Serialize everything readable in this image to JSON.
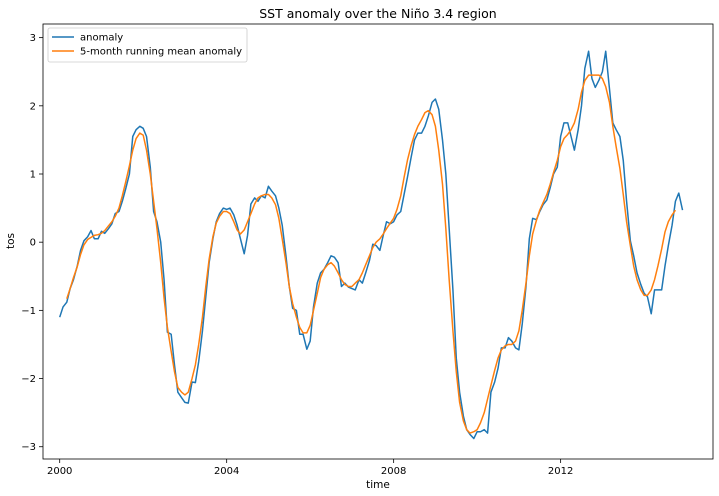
{
  "chart_data": {
    "type": "line",
    "title": "SST anomaly over the Niño 3.4 region",
    "xlabel": "time",
    "ylabel": "tos",
    "xlim": [
      1999.6,
      2015.65
    ],
    "ylim": [
      -3.18,
      3.2
    ],
    "x_ticks": [
      2000,
      2004,
      2008,
      2012
    ],
    "x_tick_labels": [
      "2000",
      "2004",
      "2008",
      "2012"
    ],
    "y_ticks": [
      -3,
      -2,
      -1,
      0,
      1,
      2,
      3
    ],
    "y_tick_labels": [
      "−3",
      "−2",
      "−1",
      "0",
      "1",
      "2",
      "3"
    ],
    "grid": false,
    "legend": "top-left",
    "series": [
      {
        "name": "anomaly",
        "color": "#1f77b4",
        "x": [
          2000.0,
          2000.08,
          2000.17,
          2000.25,
          2000.33,
          2000.42,
          2000.5,
          2000.58,
          2000.67,
          2000.75,
          2000.83,
          2000.92,
          2001.0,
          2001.08,
          2001.17,
          2001.25,
          2001.33,
          2001.42,
          2001.5,
          2001.58,
          2001.67,
          2001.75,
          2001.83,
          2001.92,
          2002.0,
          2002.08,
          2002.17,
          2002.25,
          2002.33,
          2002.42,
          2002.5,
          2002.58,
          2002.67,
          2002.75,
          2002.83,
          2002.92,
          2003.0,
          2003.08,
          2003.17,
          2003.25,
          2003.33,
          2003.42,
          2003.5,
          2003.58,
          2003.67,
          2003.75,
          2003.83,
          2003.92,
          2004.0,
          2004.08,
          2004.17,
          2004.25,
          2004.33,
          2004.42,
          2004.5,
          2004.58,
          2004.67,
          2004.75,
          2004.83,
          2004.92,
          2005.0,
          2005.08,
          2005.17,
          2005.25,
          2005.33,
          2005.42,
          2005.5,
          2005.58,
          2005.67,
          2005.75,
          2005.83,
          2005.92,
          2006.0,
          2006.08,
          2006.17,
          2006.25,
          2006.33,
          2006.42,
          2006.5,
          2006.58,
          2006.67,
          2006.75,
          2006.83,
          2006.92,
          2007.0,
          2007.08,
          2007.17,
          2007.25,
          2007.33,
          2007.42,
          2007.5,
          2007.58,
          2007.67,
          2007.75,
          2007.83,
          2007.92,
          2008.0,
          2008.08,
          2008.17,
          2008.25,
          2008.33,
          2008.42,
          2008.5,
          2008.58,
          2008.67,
          2008.75,
          2008.83,
          2008.92,
          2009.0,
          2009.08,
          2009.17,
          2009.25,
          2009.33,
          2009.42,
          2009.5,
          2009.58,
          2009.67,
          2009.75,
          2009.83,
          2009.92,
          2010.0,
          2010.08,
          2010.17,
          2010.25,
          2010.33,
          2010.42,
          2010.5,
          2010.58,
          2010.67,
          2010.75,
          2010.83,
          2010.92,
          2011.0,
          2011.08,
          2011.17,
          2011.25,
          2011.33,
          2011.42,
          2011.5,
          2011.58,
          2011.67,
          2011.75,
          2011.83,
          2011.92,
          2012.0,
          2012.08,
          2012.17,
          2012.25,
          2012.33,
          2012.42,
          2012.5,
          2012.58,
          2012.67,
          2012.75,
          2012.83,
          2012.92,
          2013.0,
          2013.08,
          2013.17,
          2013.25,
          2013.33,
          2013.42,
          2013.5,
          2013.58,
          2013.67,
          2013.75,
          2013.83,
          2013.92,
          2014.0,
          2014.08,
          2014.17,
          2014.25,
          2014.33,
          2014.42,
          2014.5,
          2014.58,
          2014.67,
          2014.75,
          2014.83,
          2014.92
        ],
        "y": [
          -1.1,
          -0.95,
          -0.88,
          -0.68,
          -0.55,
          -0.35,
          -0.12,
          0.02,
          0.08,
          0.17,
          0.05,
          0.05,
          0.16,
          0.13,
          0.2,
          0.27,
          0.42,
          0.45,
          0.6,
          0.78,
          1.0,
          1.55,
          1.65,
          1.7,
          1.67,
          1.55,
          1.1,
          0.45,
          0.3,
          0.0,
          -0.55,
          -1.32,
          -1.35,
          -1.8,
          -2.2,
          -2.28,
          -2.35,
          -2.36,
          -2.05,
          -2.06,
          -1.75,
          -1.3,
          -0.8,
          -0.3,
          0.05,
          0.3,
          0.42,
          0.5,
          0.48,
          0.5,
          0.4,
          0.25,
          0.05,
          -0.17,
          0.1,
          0.56,
          0.65,
          0.6,
          0.68,
          0.65,
          0.82,
          0.75,
          0.68,
          0.5,
          0.25,
          -0.2,
          -0.65,
          -0.97,
          -1.0,
          -1.35,
          -1.35,
          -1.57,
          -1.45,
          -0.95,
          -0.6,
          -0.45,
          -0.4,
          -0.3,
          -0.2,
          -0.22,
          -0.3,
          -0.65,
          -0.6,
          -0.66,
          -0.68,
          -0.7,
          -0.55,
          -0.6,
          -0.45,
          -0.27,
          -0.03,
          -0.05,
          -0.12,
          0.1,
          0.3,
          0.27,
          0.3,
          0.4,
          0.45,
          0.7,
          0.95,
          1.25,
          1.5,
          1.6,
          1.6,
          1.7,
          1.85,
          2.05,
          2.1,
          1.95,
          1.5,
          1.0,
          0.2,
          -0.7,
          -1.7,
          -2.2,
          -2.55,
          -2.75,
          -2.82,
          -2.88,
          -2.78,
          -2.78,
          -2.75,
          -2.8,
          -2.2,
          -2.05,
          -1.85,
          -1.55,
          -1.55,
          -1.4,
          -1.45,
          -1.55,
          -1.58,
          -1.2,
          -0.65,
          0.05,
          0.35,
          0.33,
          0.45,
          0.55,
          0.62,
          0.8,
          1.0,
          1.1,
          1.55,
          1.75,
          1.75,
          1.55,
          1.35,
          1.65,
          2.0,
          2.55,
          2.8,
          2.4,
          2.27,
          2.38,
          2.5,
          2.8,
          2.25,
          1.75,
          1.65,
          1.55,
          1.2,
          0.6,
          0.02,
          -0.2,
          -0.45,
          -0.62,
          -0.75,
          -0.8,
          -1.05,
          -0.7,
          -0.7,
          -0.7,
          -0.35,
          -0.05,
          0.25,
          0.6,
          0.72,
          0.47
        ]
      },
      {
        "name": "5-month running mean anomaly",
        "color": "#ff7f0e",
        "x": [
          2000.17,
          2000.25,
          2000.33,
          2000.42,
          2000.5,
          2000.58,
          2000.67,
          2000.75,
          2000.83,
          2000.92,
          2001.0,
          2001.08,
          2001.17,
          2001.25,
          2001.33,
          2001.42,
          2001.5,
          2001.58,
          2001.67,
          2001.75,
          2001.83,
          2001.92,
          2002.0,
          2002.08,
          2002.17,
          2002.25,
          2002.33,
          2002.42,
          2002.5,
          2002.58,
          2002.67,
          2002.75,
          2002.83,
          2002.92,
          2003.0,
          2003.08,
          2003.17,
          2003.25,
          2003.33,
          2003.42,
          2003.5,
          2003.58,
          2003.67,
          2003.75,
          2003.83,
          2003.92,
          2004.0,
          2004.08,
          2004.17,
          2004.25,
          2004.33,
          2004.42,
          2004.5,
          2004.58,
          2004.67,
          2004.75,
          2004.83,
          2004.92,
          2005.0,
          2005.08,
          2005.17,
          2005.25,
          2005.33,
          2005.42,
          2005.5,
          2005.58,
          2005.67,
          2005.75,
          2005.83,
          2005.92,
          2006.0,
          2006.08,
          2006.17,
          2006.25,
          2006.33,
          2006.42,
          2006.5,
          2006.58,
          2006.67,
          2006.75,
          2006.83,
          2006.92,
          2007.0,
          2007.08,
          2007.17,
          2007.25,
          2007.33,
          2007.42,
          2007.5,
          2007.58,
          2007.67,
          2007.75,
          2007.83,
          2007.92,
          2008.0,
          2008.08,
          2008.17,
          2008.25,
          2008.33,
          2008.42,
          2008.5,
          2008.58,
          2008.67,
          2008.75,
          2008.83,
          2008.92,
          2009.0,
          2009.08,
          2009.17,
          2009.25,
          2009.33,
          2009.42,
          2009.5,
          2009.58,
          2009.67,
          2009.75,
          2009.83,
          2009.92,
          2010.0,
          2010.08,
          2010.17,
          2010.25,
          2010.33,
          2010.42,
          2010.5,
          2010.58,
          2010.67,
          2010.75,
          2010.83,
          2010.92,
          2011.0,
          2011.08,
          2011.17,
          2011.25,
          2011.33,
          2011.42,
          2011.5,
          2011.58,
          2011.67,
          2011.75,
          2011.83,
          2011.92,
          2012.0,
          2012.08,
          2012.17,
          2012.25,
          2012.33,
          2012.42,
          2012.5,
          2012.58,
          2012.67,
          2012.75,
          2012.83,
          2012.92,
          2013.0,
          2013.08,
          2013.17,
          2013.25,
          2013.33,
          2013.42,
          2013.5,
          2013.58,
          2013.67,
          2013.75,
          2013.83,
          2013.92,
          2014.0,
          2014.08,
          2014.17,
          2014.25,
          2014.33,
          2014.42,
          2014.5,
          2014.58,
          2014.67,
          2014.75
        ],
        "y": [
          -0.83,
          -0.68,
          -0.52,
          -0.36,
          -0.18,
          -0.04,
          0.04,
          0.07,
          0.1,
          0.11,
          0.13,
          0.17,
          0.24,
          0.3,
          0.38,
          0.5,
          0.68,
          0.88,
          1.12,
          1.35,
          1.52,
          1.6,
          1.57,
          1.35,
          1.0,
          0.6,
          0.2,
          -0.3,
          -0.82,
          -1.25,
          -1.6,
          -1.9,
          -2.13,
          -2.2,
          -2.24,
          -2.2,
          -2.0,
          -1.8,
          -1.5,
          -1.1,
          -0.65,
          -0.25,
          0.08,
          0.28,
          0.38,
          0.45,
          0.45,
          0.42,
          0.3,
          0.18,
          0.12,
          0.18,
          0.3,
          0.42,
          0.56,
          0.65,
          0.68,
          0.7,
          0.7,
          0.65,
          0.55,
          0.35,
          0.05,
          -0.3,
          -0.65,
          -0.9,
          -1.1,
          -1.25,
          -1.33,
          -1.33,
          -1.22,
          -1.0,
          -0.75,
          -0.52,
          -0.4,
          -0.33,
          -0.3,
          -0.35,
          -0.45,
          -0.55,
          -0.62,
          -0.65,
          -0.65,
          -0.6,
          -0.55,
          -0.45,
          -0.33,
          -0.2,
          -0.08,
          0.0,
          0.05,
          0.12,
          0.2,
          0.28,
          0.35,
          0.48,
          0.68,
          0.95,
          1.2,
          1.42,
          1.58,
          1.7,
          1.8,
          1.9,
          1.93,
          1.87,
          1.7,
          1.35,
          0.85,
          0.2,
          -0.55,
          -1.3,
          -1.9,
          -2.35,
          -2.62,
          -2.75,
          -2.8,
          -2.78,
          -2.75,
          -2.65,
          -2.5,
          -2.3,
          -2.1,
          -1.88,
          -1.7,
          -1.58,
          -1.52,
          -1.5,
          -1.5,
          -1.45,
          -1.3,
          -1.0,
          -0.6,
          -0.2,
          0.12,
          0.32,
          0.47,
          0.58,
          0.7,
          0.85,
          1.02,
          1.2,
          1.4,
          1.52,
          1.58,
          1.65,
          1.75,
          1.95,
          2.2,
          2.37,
          2.45,
          2.45,
          2.45,
          2.45,
          2.4,
          2.28,
          2.05,
          1.7,
          1.4,
          1.08,
          0.7,
          0.3,
          -0.05,
          -0.35,
          -0.55,
          -0.7,
          -0.78,
          -0.78,
          -0.7,
          -0.55,
          -0.35,
          -0.1,
          0.15,
          0.3,
          0.4,
          0.47
        ]
      }
    ]
  }
}
